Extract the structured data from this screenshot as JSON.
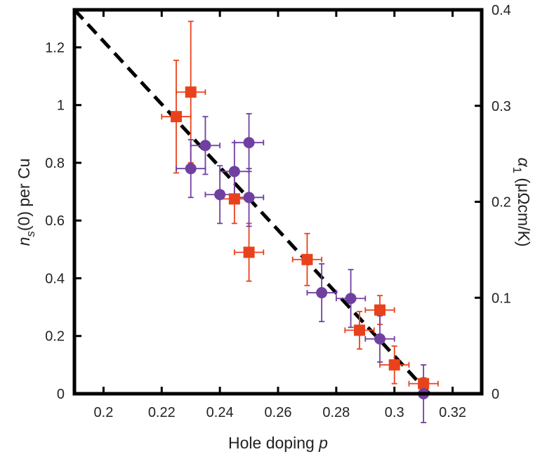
{
  "chart_data": {
    "type": "scatter",
    "xlabel": "Hole doping p",
    "ylabel_left": "n_s(0) per Cu",
    "ylabel_right": "α_1 (μΩcm/K)",
    "xlim": [
      0.19,
      0.33
    ],
    "ylim_left": [
      0,
      1.33
    ],
    "ylim_right": [
      0,
      0.4
    ],
    "x_ticks": [
      "0.2",
      "0.22",
      "0.24",
      "0.26",
      "0.28",
      "0.3",
      "0.32"
    ],
    "y_left_ticks": [
      "0",
      "0.2",
      "0.4",
      "0.6",
      "0.8",
      "1",
      "1.2"
    ],
    "y_right_ticks": [
      "0",
      "0.1",
      "0.2",
      "0.3",
      "0.4"
    ],
    "grid": false,
    "series": [
      {
        "name": "squares",
        "marker": "square",
        "color": "#e8421c",
        "axis": "left",
        "points": [
          {
            "x": 0.225,
            "y": 0.96,
            "xerr": 0.005,
            "yerr": 0.195
          },
          {
            "x": 0.23,
            "y": 1.045,
            "xerr": 0.005,
            "yerr": 0.245
          },
          {
            "x": 0.245,
            "y": 0.675,
            "xerr": 0.005,
            "yerr": 0.085
          },
          {
            "x": 0.25,
            "y": 0.49,
            "xerr": 0.005,
            "yerr": 0.1
          },
          {
            "x": 0.27,
            "y": 0.465,
            "xerr": 0.005,
            "yerr": 0.09
          },
          {
            "x": 0.288,
            "y": 0.22,
            "xerr": 0.005,
            "yerr": 0.065
          },
          {
            "x": 0.295,
            "y": 0.29,
            "xerr": 0.005,
            "yerr": 0.05
          },
          {
            "x": 0.3,
            "y": 0.1,
            "xerr": 0.005,
            "yerr": 0.065
          },
          {
            "x": 0.31,
            "y": 0.035,
            "xerr": 0.005,
            "yerr": 0.02
          }
        ]
      },
      {
        "name": "circles",
        "marker": "circle",
        "color": "#7040a0",
        "axis": "left",
        "points": [
          {
            "x": 0.23,
            "y": 0.78,
            "xerr": 0.005,
            "yerr": 0.1
          },
          {
            "x": 0.235,
            "y": 0.86,
            "xerr": 0.005,
            "yerr": 0.1
          },
          {
            "x": 0.24,
            "y": 0.69,
            "xerr": 0.005,
            "yerr": 0.1
          },
          {
            "x": 0.245,
            "y": 0.77,
            "xerr": 0.005,
            "yerr": 0.1
          },
          {
            "x": 0.25,
            "y": 0.87,
            "xerr": 0.005,
            "yerr": 0.1
          },
          {
            "x": 0.25,
            "y": 0.68,
            "xerr": 0.005,
            "yerr": 0.1
          },
          {
            "x": 0.275,
            "y": 0.35,
            "xerr": 0.005,
            "yerr": 0.1
          },
          {
            "x": 0.285,
            "y": 0.33,
            "xerr": 0.005,
            "yerr": 0.1
          },
          {
            "x": 0.295,
            "y": 0.19,
            "xerr": 0.005,
            "yerr": 0.08
          },
          {
            "x": 0.31,
            "y": 0.0,
            "xerr": 0.0,
            "yerr": 0.1
          }
        ]
      }
    ],
    "fit_line": {
      "style": "dashed",
      "color": "#000000",
      "x": [
        0.19,
        0.312
      ],
      "y": [
        1.33,
        0.0
      ]
    }
  }
}
